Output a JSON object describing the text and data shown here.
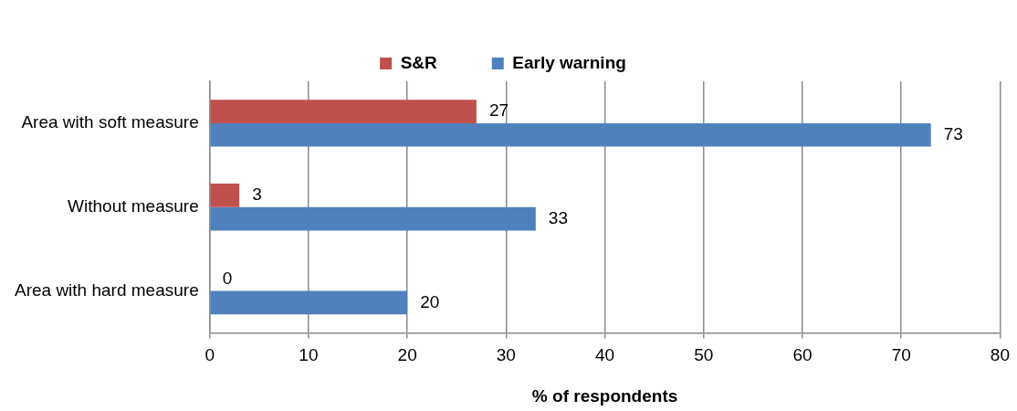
{
  "chart_data": {
    "type": "bar",
    "orientation": "horizontal",
    "categories": [
      "Area with soft measure",
      "Without measure",
      "Area with hard measure"
    ],
    "series": [
      {
        "name": "S&R",
        "color": "#c0504d",
        "values": [
          27,
          3,
          0
        ]
      },
      {
        "name": "Early warning",
        "color": "#4f81bd",
        "values": [
          73,
          33,
          20
        ]
      }
    ],
    "xlabel": "% of respondents",
    "xlim": [
      0,
      80
    ],
    "xticks": [
      0,
      10,
      20,
      30,
      40,
      50,
      60,
      70,
      80
    ],
    "grid": "x",
    "legend": "top",
    "data_labels": true
  }
}
